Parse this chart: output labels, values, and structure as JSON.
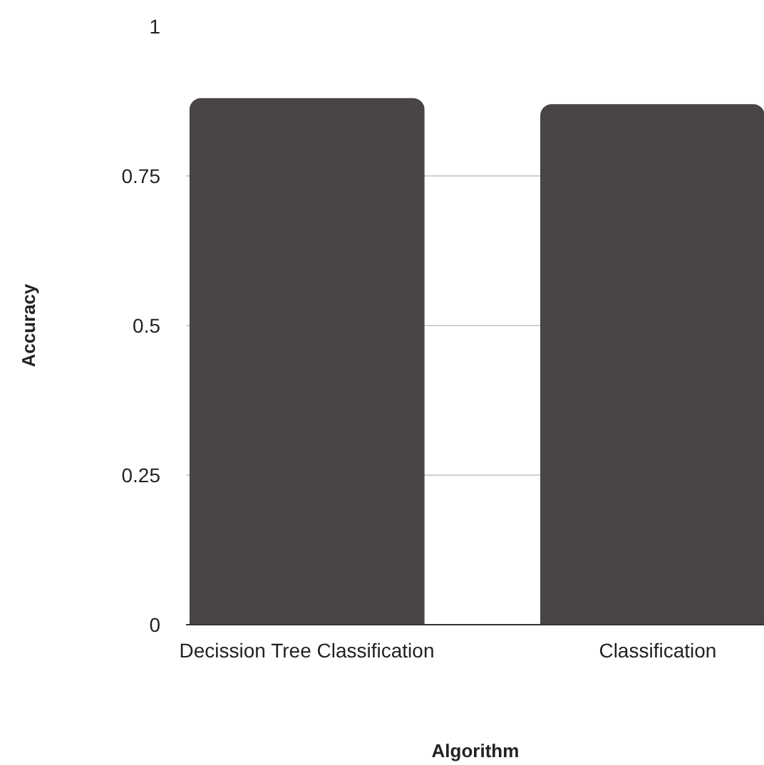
{
  "chart_data": {
    "type": "bar",
    "xlabel": "Algorithm",
    "ylabel": "Accuracy",
    "categories": [
      "Decission Tree Classification",
      "Classification"
    ],
    "values": [
      0.88,
      0.87
    ],
    "color": "#484448",
    "ylim": [
      0,
      1
    ],
    "yticks": [
      0,
      0.25,
      0.5,
      0.75,
      1
    ],
    "grid": "y"
  }
}
